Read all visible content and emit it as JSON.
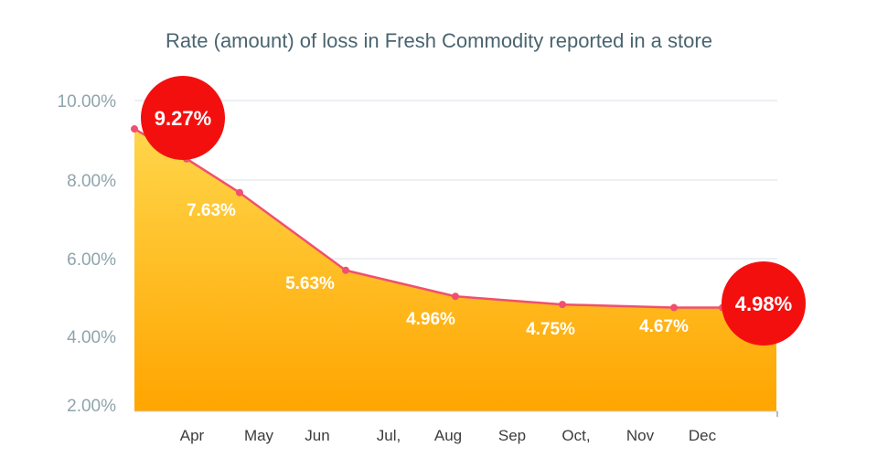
{
  "chart_data": {
    "type": "area",
    "title": "Rate (amount) of loss in Fresh Commodity reported in a store",
    "xlabel": "",
    "ylabel": "",
    "ylim": [
      2,
      10
    ],
    "y_ticks": [
      "2.00%",
      "4.00%",
      "6.00%",
      "8.00%",
      "10.00%"
    ],
    "grid": true,
    "categories": [
      "Apr",
      "May",
      "Jun",
      "Jul,",
      "Aug",
      "Sep",
      "Oct,",
      "Nov",
      "Dec"
    ],
    "series": [
      {
        "values": [
          9.27,
          8.5,
          7.63,
          5.63,
          4.96,
          4.75,
          4.67,
          4.67,
          4.98
        ],
        "labels": [
          "9.27%",
          "",
          "7.63%",
          "5.63%",
          "4.96%",
          "4.75%",
          "4.67%",
          "",
          "4.98%"
        ],
        "highlighted": [
          "9.27%",
          "4.98%"
        ]
      }
    ],
    "colors": {
      "line": "#f0506e",
      "area_top": "#ffd64a",
      "area_bottom": "#ffa500",
      "highlight": "#f40f0f",
      "grid": "#e6ecef"
    }
  }
}
